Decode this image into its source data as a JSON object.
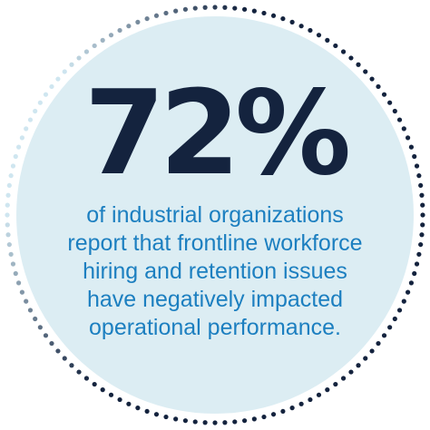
{
  "stat": {
    "value": "72%",
    "caption_lines": [
      "of industrial organizations",
      "report that frontline workforce",
      "hiring and retention issues",
      "have negatively impacted",
      "operational performance."
    ]
  },
  "colors": {
    "circle_fill": "#dcedf3",
    "stat_text": "#14233e",
    "caption_text": "#1c7fc0",
    "dots_dark": "#14233e",
    "dots_light": "#cfe6f0"
  }
}
